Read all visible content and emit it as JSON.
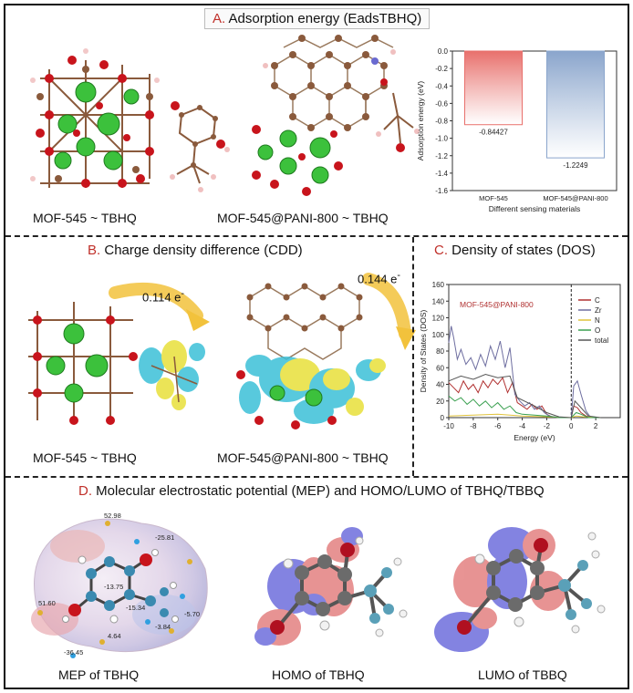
{
  "panel_a": {
    "letter": "A.",
    "title": "Adsorption energy (EadsTBHQ)",
    "caption_left": "MOF-545 ~ TBHQ",
    "caption_right": "MOF-545@PANI-800 ~ TBHQ"
  },
  "panel_b": {
    "letter": "B.",
    "title": "Charge density difference (CDD)",
    "caption_left": "MOF-545 ~ TBHQ",
    "caption_right": "MOF-545@PANI-800 ~ TBHQ",
    "charge_left": "0.114 e",
    "charge_right": "0.144 e",
    "charge_sup": "-"
  },
  "panel_c": {
    "letter": "C.",
    "title": "Density of states (DOS)"
  },
  "panel_d": {
    "letter": "D.",
    "title": "Molecular electrostatic potential (MEP) and HOMO/LUMO of TBHQ/TBBQ",
    "caption_left": "MEP of TBHQ",
    "caption_mid": "HOMO of TBHQ",
    "caption_right": "LUMO of TBBQ",
    "mep_labels": [
      "52.98",
      "-25.81",
      "-13.75",
      "-15.34",
      "51.60",
      "-5.70",
      "-3.84",
      "4.64",
      "-36.45"
    ]
  },
  "colors": {
    "title_accent": "#c0302a",
    "bar_red": "#e8706c",
    "bar_blue": "#8aa5cc",
    "zr_green": "#3cc13c",
    "oxygen_red": "#c8141c",
    "carbon_brown": "#8a5a3c"
  },
  "chart_data": [
    {
      "type": "bar",
      "categories": [
        "MOF-545",
        "MOF-545@PANI-800"
      ],
      "values": [
        -0.84427,
        -1.2249
      ],
      "value_labels": [
        "-0.84427",
        "-1.2249"
      ],
      "xlabel": "Different sensing materials",
      "ylabel": "Adsorption energy (eV)",
      "ylim": [
        -1.6,
        0.0
      ],
      "yticks": [
        "0.0",
        "-0.2",
        "-0.4",
        "-0.6",
        "-0.8",
        "-1.0",
        "-1.2",
        "-1.4",
        "-1.6"
      ]
    },
    {
      "type": "line",
      "title": "MOF-545@PANI-800",
      "xlabel": "Energy (eV)",
      "ylabel": "Density of States (DOS)",
      "xlim": [
        -10,
        4
      ],
      "ylim": [
        0,
        160
      ],
      "xticks": [
        "-10",
        "-8",
        "-6",
        "-4",
        "-2",
        "0",
        "2"
      ],
      "yticks": [
        "0",
        "20",
        "40",
        "60",
        "80",
        "100",
        "120",
        "140",
        "160"
      ],
      "fermi_level": 0,
      "series": [
        {
          "name": "C",
          "color": "#b03030",
          "points": [
            [
              -10,
              42
            ],
            [
              -9.6,
              36
            ],
            [
              -9.2,
              30
            ],
            [
              -8.8,
              44
            ],
            [
              -8.4,
              34
            ],
            [
              -8,
              40
            ],
            [
              -7.6,
              30
            ],
            [
              -7.2,
              44
            ],
            [
              -6.8,
              36
            ],
            [
              -6.4,
              46
            ],
            [
              -6,
              40
            ],
            [
              -5.6,
              48
            ],
            [
              -5.2,
              30
            ],
            [
              -4.8,
              42
            ],
            [
              -4.4,
              18
            ],
            [
              -4,
              14
            ],
            [
              -3.6,
              10
            ],
            [
              -3.2,
              16
            ],
            [
              -2.8,
              10
            ],
            [
              -2.4,
              14
            ],
            [
              -2,
              4
            ],
            [
              -1.6,
              1
            ],
            [
              -1,
              0
            ],
            [
              0,
              0
            ],
            [
              0.2,
              14
            ],
            [
              0.5,
              12
            ],
            [
              0.8,
              6
            ],
            [
              1.2,
              2
            ],
            [
              1.6,
              0
            ],
            [
              2.4,
              0
            ]
          ]
        },
        {
          "name": "Zr",
          "color": "#6e6ea0",
          "points": [
            [
              -10,
              90
            ],
            [
              -9.8,
              110
            ],
            [
              -9.6,
              96
            ],
            [
              -9.3,
              70
            ],
            [
              -9,
              82
            ],
            [
              -8.6,
              64
            ],
            [
              -8.2,
              72
            ],
            [
              -7.8,
              58
            ],
            [
              -7.4,
              76
            ],
            [
              -7,
              62
            ],
            [
              -6.6,
              86
            ],
            [
              -6.2,
              70
            ],
            [
              -5.8,
              92
            ],
            [
              -5.4,
              60
            ],
            [
              -5,
              84
            ],
            [
              -4.6,
              28
            ],
            [
              -4.2,
              20
            ],
            [
              -3.8,
              14
            ],
            [
              -3.4,
              18
            ],
            [
              -3,
              10
            ],
            [
              -2.6,
              14
            ],
            [
              -2.2,
              6
            ],
            [
              -1.8,
              2
            ],
            [
              -1,
              0
            ],
            [
              0,
              0
            ],
            [
              0.2,
              38
            ],
            [
              0.5,
              44
            ],
            [
              0.8,
              28
            ],
            [
              1.2,
              8
            ],
            [
              1.6,
              0
            ],
            [
              2.4,
              0
            ]
          ]
        },
        {
          "name": "N",
          "color": "#e0c23a",
          "points": [
            [
              -10,
              2
            ],
            [
              -8,
              3
            ],
            [
              -6,
              4
            ],
            [
              -4,
              2
            ],
            [
              -2,
              1
            ],
            [
              0,
              0
            ],
            [
              0.4,
              2
            ],
            [
              1,
              1
            ],
            [
              2.4,
              0
            ]
          ]
        },
        {
          "name": "O",
          "color": "#3aa050",
          "points": [
            [
              -10,
              26
            ],
            [
              -9.5,
              20
            ],
            [
              -9,
              24
            ],
            [
              -8.5,
              16
            ],
            [
              -8,
              22
            ],
            [
              -7.5,
              14
            ],
            [
              -7,
              20
            ],
            [
              -6.5,
              12
            ],
            [
              -6,
              18
            ],
            [
              -5.5,
              10
            ],
            [
              -5,
              14
            ],
            [
              -4.5,
              6
            ],
            [
              -4,
              4
            ],
            [
              -3,
              3
            ],
            [
              -2,
              2
            ],
            [
              -1,
              0
            ],
            [
              0,
              0
            ],
            [
              0.4,
              6
            ],
            [
              0.8,
              4
            ],
            [
              1.4,
              0
            ],
            [
              2.4,
              0
            ]
          ]
        },
        {
          "name": "total",
          "color": "#555555",
          "points": [
            [
              -10,
              44
            ],
            [
              -9,
              50
            ],
            [
              -8,
              46
            ],
            [
              -7,
              52
            ],
            [
              -6,
              48
            ],
            [
              -5,
              50
            ],
            [
              -4.4,
              24
            ],
            [
              -3,
              14
            ],
            [
              -2,
              6
            ],
            [
              -1,
              1
            ],
            [
              0,
              0
            ],
            [
              0.3,
              20
            ],
            [
              0.8,
              12
            ],
            [
              1.4,
              2
            ],
            [
              2.4,
              0
            ]
          ]
        }
      ]
    }
  ]
}
